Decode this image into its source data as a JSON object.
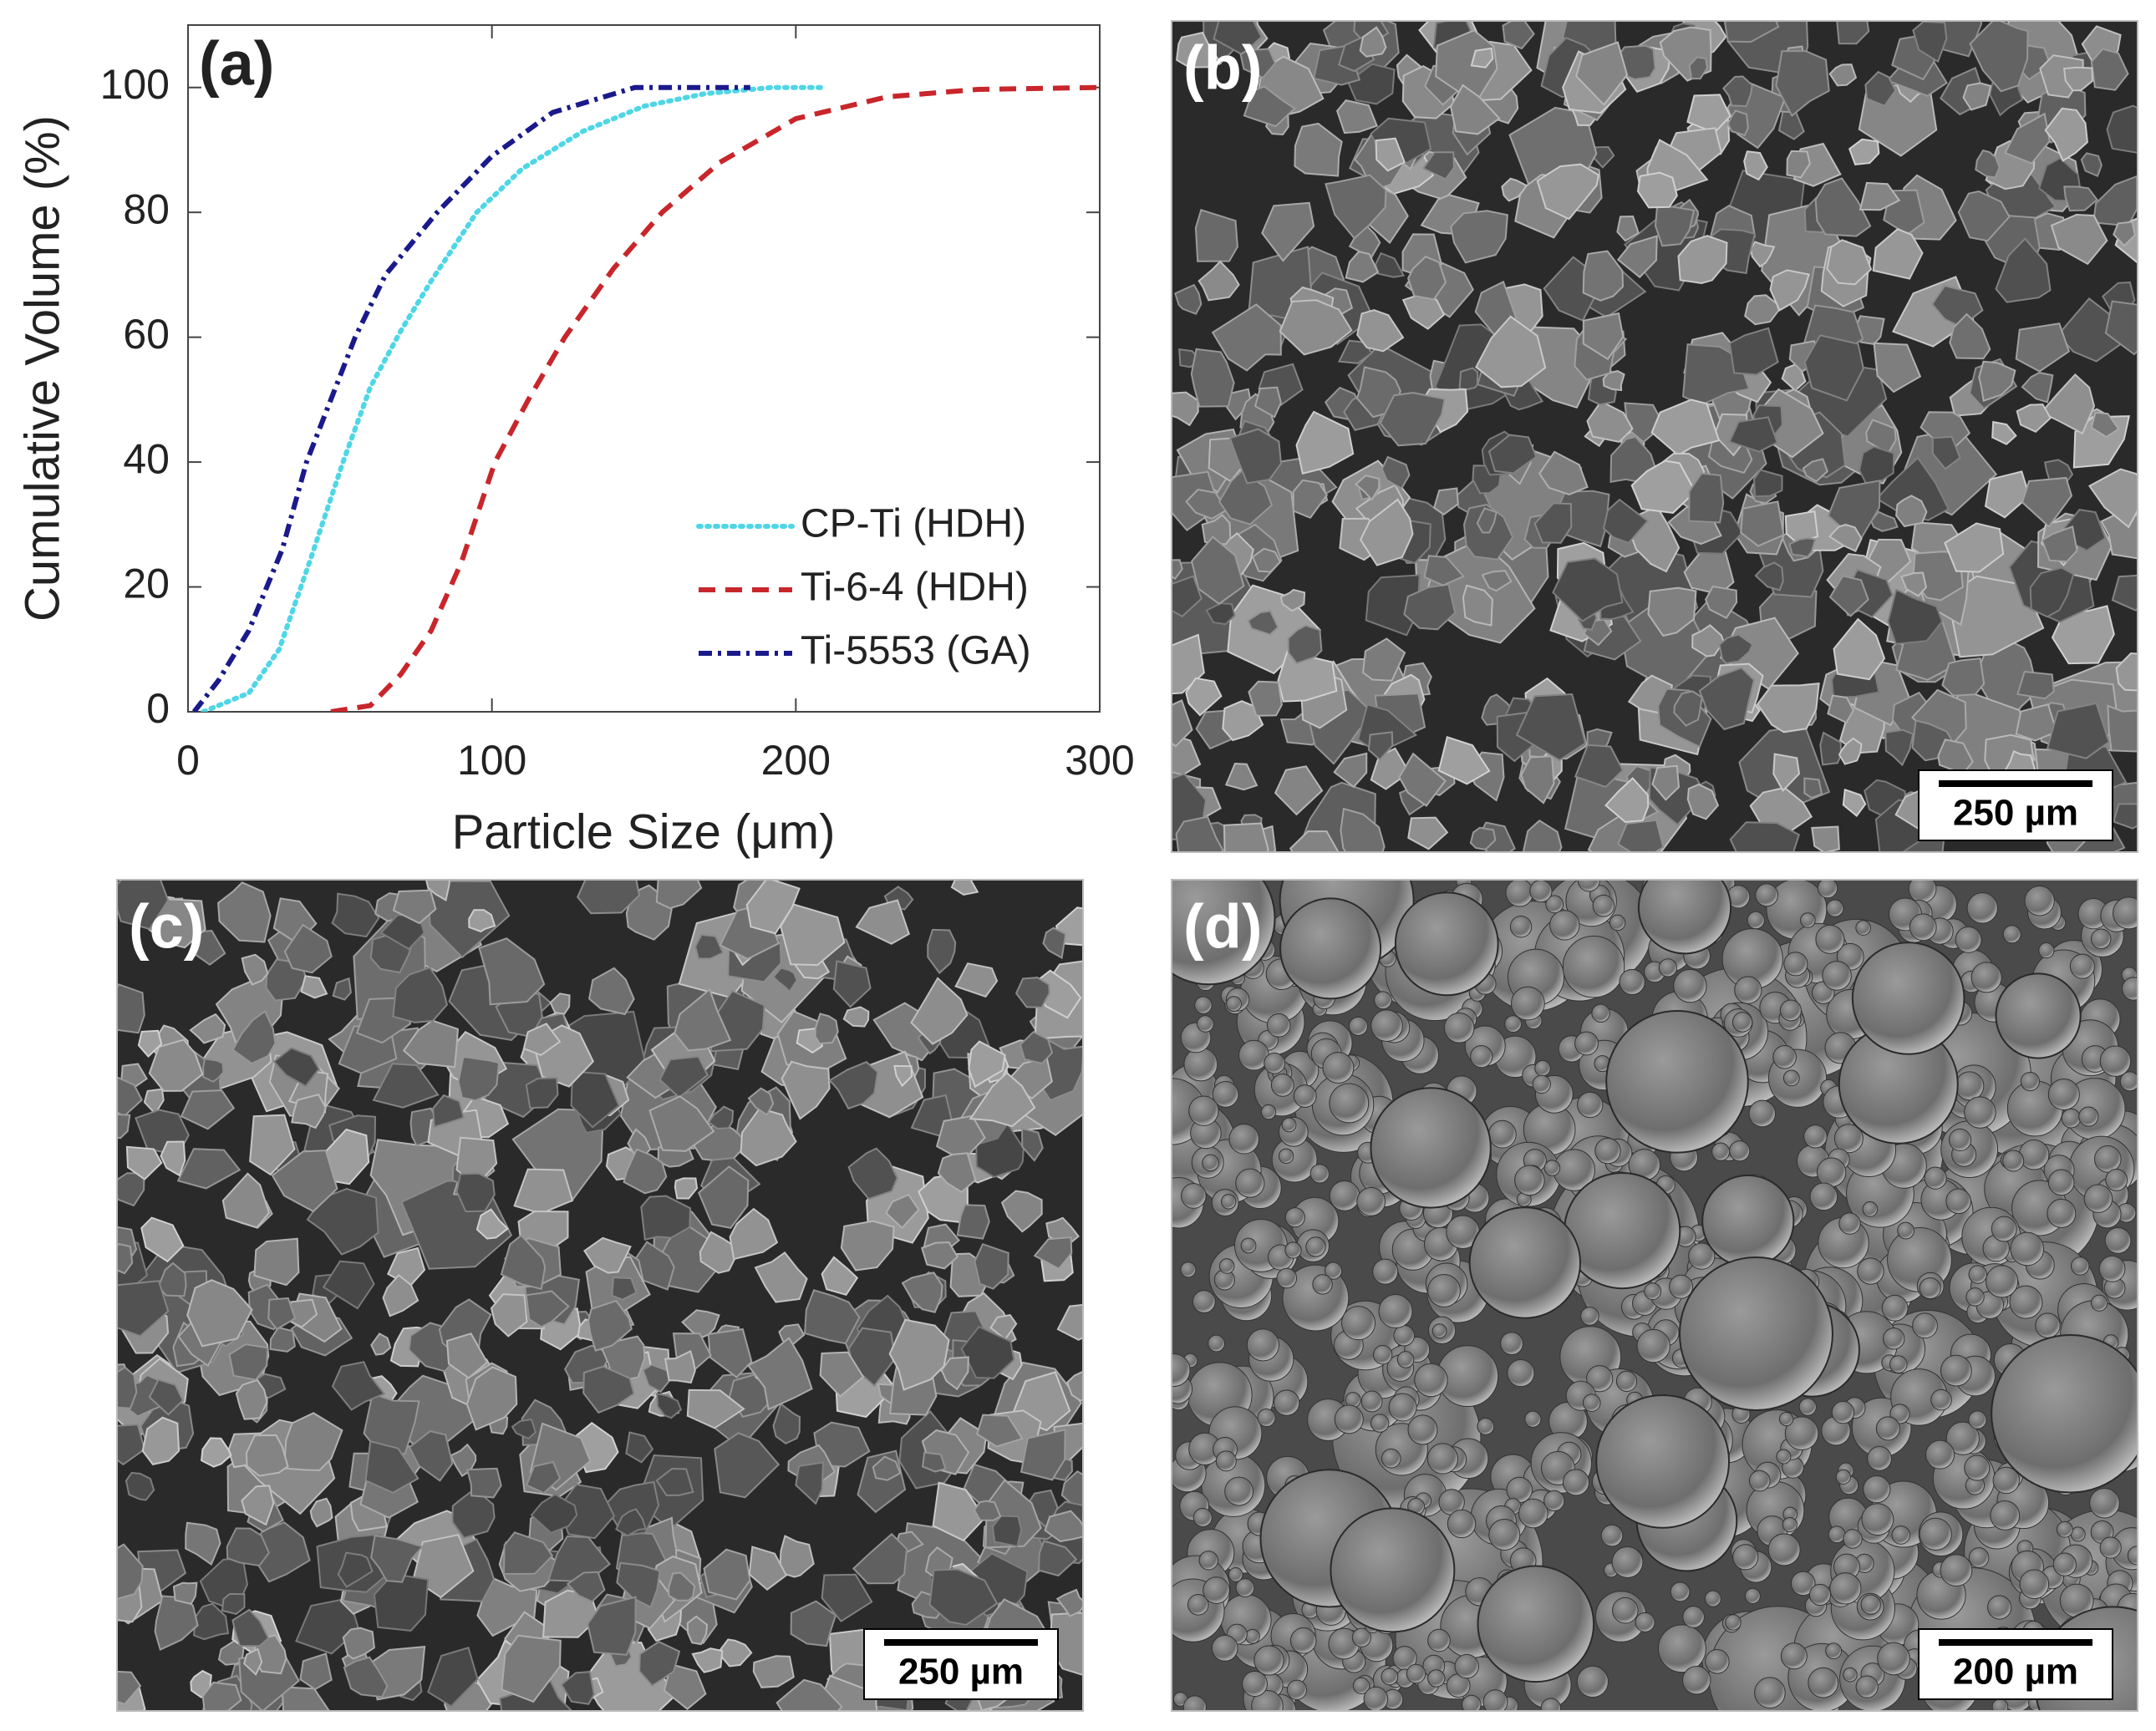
{
  "chart_data": {
    "type": "line",
    "panel_label": "(a)",
    "xlabel": "Particle Size (μm)",
    "ylabel": "Cumulative Volume (%)",
    "xlim": [
      0,
      300
    ],
    "xticks": [
      0,
      100,
      200,
      300
    ],
    "ylim": [
      0,
      110
    ],
    "yticks": [
      0,
      20,
      40,
      60,
      80,
      100
    ],
    "grid": false,
    "legend": "lower right",
    "series": [
      {
        "name": "CP-Ti (HDH)",
        "color": "#4fd6e6",
        "style": "dotted",
        "x": [
          5,
          20,
          30,
          40,
          51,
          60,
          70,
          80,
          95,
          110,
          130,
          150,
          170,
          192,
          210
        ],
        "values": [
          0,
          3,
          10,
          24,
          40,
          52,
          61,
          69,
          80,
          87,
          93,
          97,
          99,
          100,
          100
        ]
      },
      {
        "name": "Ti-6-4 (HDH)",
        "color": "#c8262b",
        "style": "dashed",
        "x": [
          47,
          60,
          70,
          80,
          90,
          101,
          112,
          124,
          140,
          156,
          175,
          200,
          230,
          260,
          300
        ],
        "values": [
          0,
          1,
          6,
          13,
          24,
          40,
          50,
          60,
          71,
          80,
          88,
          95,
          98.5,
          99.7,
          100
        ]
      },
      {
        "name": "Ti-5553 (GA)",
        "color": "#1a1a8c",
        "style": "dashdot",
        "x": [
          2,
          10,
          20,
          31,
          39,
          55,
          65,
          82,
          100,
          120,
          147,
          185
        ],
        "values": [
          0,
          5,
          13,
          26,
          40,
          60,
          70,
          80,
          89,
          96,
          100,
          100
        ]
      }
    ]
  },
  "panels": [
    {
      "label": "(b)",
      "scale_bar": "250 µm"
    },
    {
      "label": "(c)",
      "scale_bar": "250 µm"
    },
    {
      "label": "(d)",
      "scale_bar": "200 µm"
    }
  ]
}
